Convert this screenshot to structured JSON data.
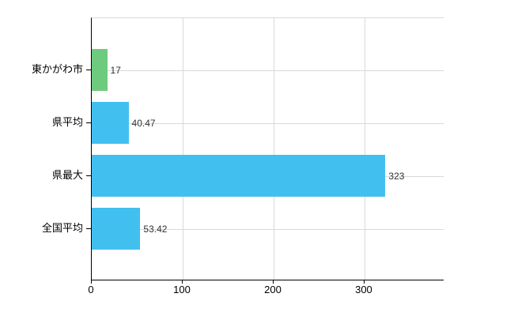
{
  "chart_data": {
    "type": "bar",
    "orientation": "horizontal",
    "title": "",
    "xlabel": "",
    "ylabel": "",
    "categories": [
      "東かがわ市",
      "県平均",
      "県最大",
      "全国平均"
    ],
    "values": [
      17,
      40.47,
      323,
      53.42
    ],
    "value_labels": [
      "17",
      "40.47",
      "323",
      "53.42"
    ],
    "bar_colors": [
      "#6ecb7d",
      "#41c0ef",
      "#41c0ef",
      "#41c0ef"
    ],
    "x_ticks": [
      0,
      100,
      200,
      300
    ],
    "x_tick_labels": [
      "0",
      "100",
      "200",
      "300"
    ],
    "xlim": [
      0,
      387
    ],
    "grid": "on",
    "legend": "none"
  },
  "colors": {
    "bar_blue": "#41c0ef",
    "bar_green": "#6ecb7d",
    "grid": "#d9d9d9",
    "axis": "#000000",
    "category_text": "#000000",
    "value_text": "#333333",
    "background": "#ffffff"
  }
}
